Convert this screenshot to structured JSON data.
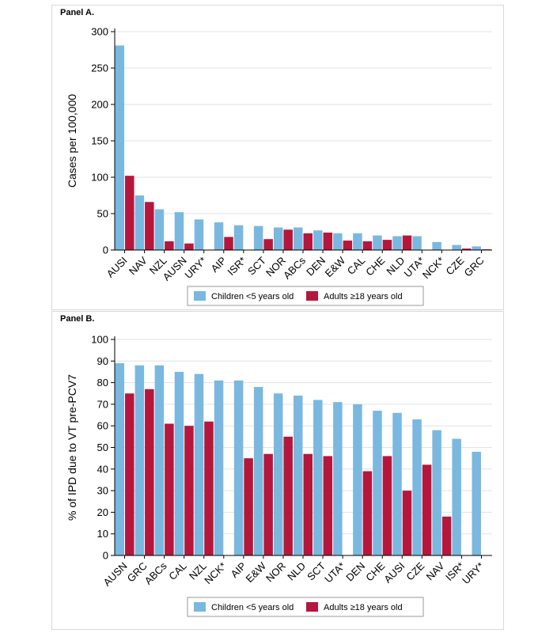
{
  "chart_data": [
    {
      "type": "bar",
      "panel_label": "Panel A.",
      "title": "",
      "xlabel": "",
      "ylabel": "Cases per 100,000",
      "ylim": [
        0,
        300
      ],
      "yticks": [
        0,
        50,
        100,
        150,
        200,
        250,
        300
      ],
      "grid": true,
      "legend_position": "bottom",
      "categories": [
        "AUSI",
        "NAV",
        "NZL",
        "AUSN",
        "URY*",
        "AIP",
        "ISR*",
        "SCT",
        "NOR",
        "ABCs",
        "DEN",
        "E&W",
        "CAL",
        "CHE",
        "NLD",
        "UTA*",
        "NCK*",
        "CZE",
        "GRC"
      ],
      "series": [
        {
          "name": "Children <5 years old",
          "color": "#7ab8e0",
          "values": [
            281,
            75,
            56,
            52,
            42,
            38,
            34,
            33,
            31,
            31,
            27,
            23,
            23,
            20,
            19,
            19,
            11,
            7,
            5
          ]
        },
        {
          "name": "Adults ≥18 years old",
          "color": "#b5173c",
          "values": [
            102,
            66,
            12,
            9,
            null,
            18,
            null,
            15,
            28,
            23,
            24,
            13,
            12,
            14,
            20,
            null,
            null,
            2,
            1
          ]
        }
      ]
    },
    {
      "type": "bar",
      "panel_label": "Panel B.",
      "title": "",
      "xlabel": "",
      "ylabel": "% of IPD due to VT pre-PCV7",
      "ylim": [
        0,
        100
      ],
      "yticks": [
        0,
        10,
        20,
        30,
        40,
        50,
        60,
        70,
        80,
        90,
        100
      ],
      "grid": true,
      "legend_position": "bottom",
      "categories": [
        "AUSN",
        "GRC",
        "ABCs",
        "CAL",
        "NZL",
        "NCK*",
        "AIP",
        "E&W",
        "NOR",
        "NLD",
        "SCT",
        "UTA*",
        "DEN",
        "CHE",
        "AUSI",
        "CZE",
        "NAV",
        "ISR*",
        "URY*"
      ],
      "series": [
        {
          "name": "Children <5 years old",
          "color": "#7ab8e0",
          "values": [
            89,
            88,
            88,
            85,
            84,
            81,
            81,
            78,
            75,
            74,
            72,
            71,
            70,
            67,
            66,
            63,
            58,
            54,
            48
          ]
        },
        {
          "name": "Adults ≥18 years old",
          "color": "#b5173c",
          "values": [
            75,
            77,
            61,
            60,
            62,
            null,
            45,
            47,
            55,
            47,
            46,
            null,
            39,
            46,
            30,
            42,
            18,
            null,
            null
          ]
        }
      ]
    }
  ]
}
